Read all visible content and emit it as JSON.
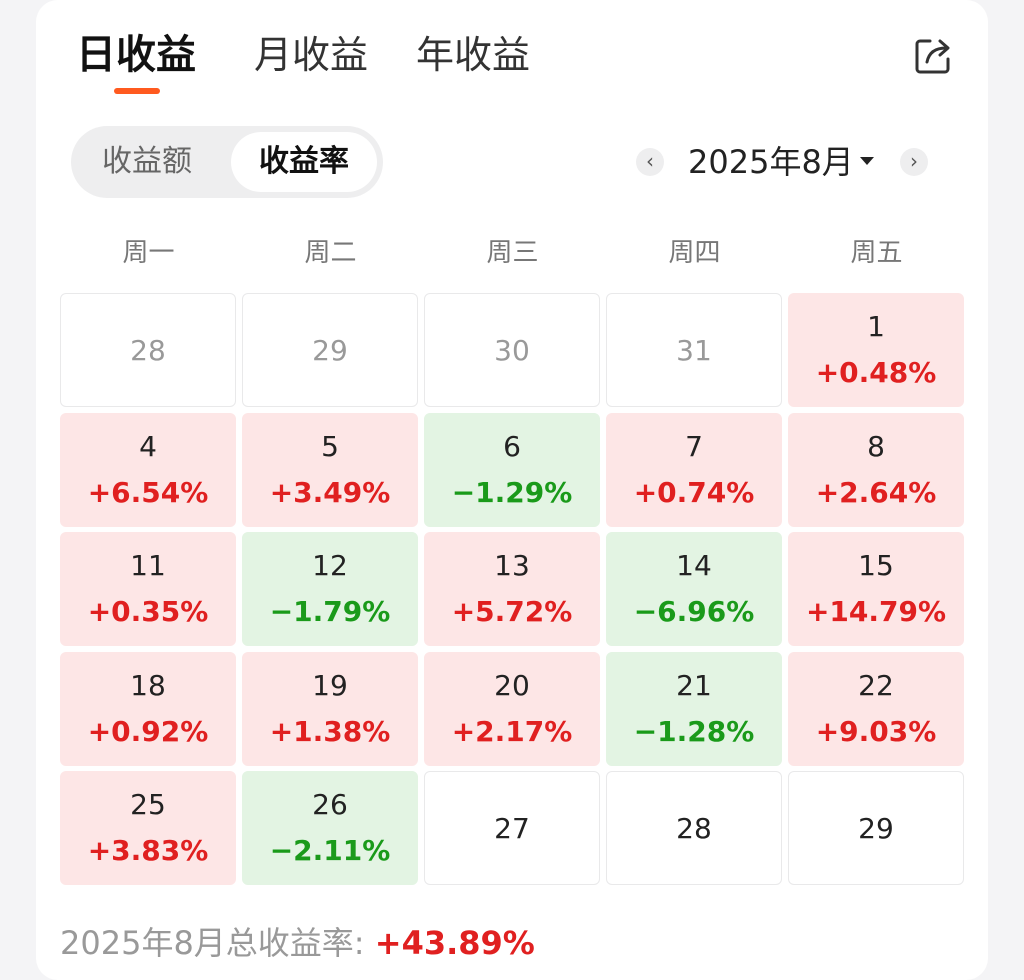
{
  "tabs": {
    "daily": "日收益",
    "monthly": "月收益",
    "yearly": "年收益"
  },
  "toggle": {
    "amount": "收益额",
    "rate": "收益率",
    "selected": "rate"
  },
  "month_nav": {
    "label": "2025年8月",
    "prev": "‹",
    "next": "›"
  },
  "weekdays": [
    "周一",
    "周二",
    "周三",
    "周四",
    "周五"
  ],
  "calendar": {
    "rows": [
      [
        {
          "day": "28",
          "type": "other"
        },
        {
          "day": "29",
          "type": "other"
        },
        {
          "day": "30",
          "type": "other"
        },
        {
          "day": "31",
          "type": "other"
        },
        {
          "day": "1",
          "pct": "+0.48%",
          "type": "up"
        }
      ],
      [
        {
          "day": "4",
          "pct": "+6.54%",
          "type": "up"
        },
        {
          "day": "5",
          "pct": "+3.49%",
          "type": "up"
        },
        {
          "day": "6",
          "pct": "−1.29%",
          "type": "down"
        },
        {
          "day": "7",
          "pct": "+0.74%",
          "type": "up"
        },
        {
          "day": "8",
          "pct": "+2.64%",
          "type": "up"
        }
      ],
      [
        {
          "day": "11",
          "pct": "+0.35%",
          "type": "up"
        },
        {
          "day": "12",
          "pct": "−1.79%",
          "type": "down"
        },
        {
          "day": "13",
          "pct": "+5.72%",
          "type": "up"
        },
        {
          "day": "14",
          "pct": "−6.96%",
          "type": "down"
        },
        {
          "day": "15",
          "pct": "+14.79%",
          "type": "up"
        }
      ],
      [
        {
          "day": "18",
          "pct": "+0.92%",
          "type": "up"
        },
        {
          "day": "19",
          "pct": "+1.38%",
          "type": "up"
        },
        {
          "day": "20",
          "pct": "+2.17%",
          "type": "up"
        },
        {
          "day": "21",
          "pct": "−1.28%",
          "type": "down"
        },
        {
          "day": "22",
          "pct": "+9.03%",
          "type": "up"
        }
      ],
      [
        {
          "day": "25",
          "pct": "+3.83%",
          "type": "up"
        },
        {
          "day": "26",
          "pct": "−2.11%",
          "type": "down"
        },
        {
          "day": "27",
          "type": "nodata"
        },
        {
          "day": "28",
          "type": "nodata"
        },
        {
          "day": "29",
          "type": "nodata"
        }
      ]
    ]
  },
  "total": {
    "label": "2025年8月总收益率: ",
    "value": "+43.89%"
  },
  "colors": {
    "accent": "#ff5a1f",
    "up_text": "#e02020",
    "up_bg": "#fde6e6",
    "down_text": "#1a9a1a",
    "down_bg": "#e3f4e3"
  },
  "icons": {
    "share": "share-icon"
  }
}
